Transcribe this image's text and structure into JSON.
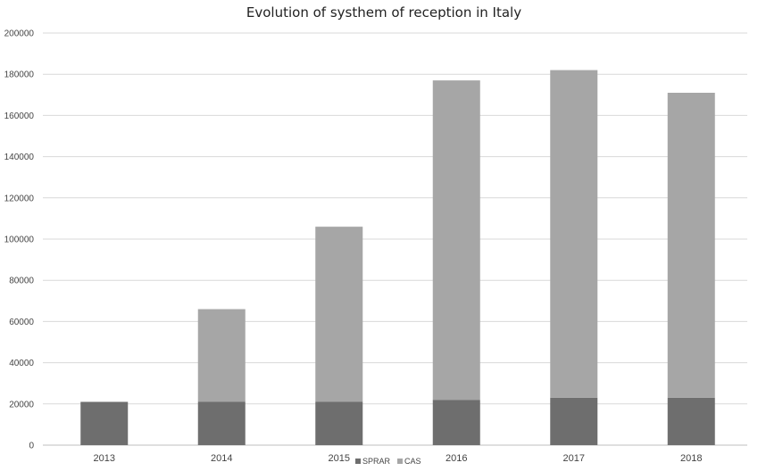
{
  "colors": {
    "sprar": "#6e6e6e",
    "cas": "#a6a6a6",
    "grid": "#d9d9d9",
    "text": "#444444"
  },
  "chart_data": {
    "type": "bar",
    "stacked": true,
    "title": "Evolution of systhem of reception in Italy",
    "xlabel": "",
    "ylabel": "",
    "categories": [
      "2013",
      "2014",
      "2015",
      "2016",
      "2017",
      "2018"
    ],
    "ylim": [
      0,
      200000
    ],
    "yticks": [
      0,
      20000,
      40000,
      60000,
      80000,
      100000,
      120000,
      140000,
      160000,
      180000,
      200000
    ],
    "grid": true,
    "legend_position": "bottom",
    "series": [
      {
        "name": "SPRAR",
        "color": "#6e6e6e",
        "values": [
          21000,
          21000,
          21000,
          22000,
          23000,
          23000
        ]
      },
      {
        "name": "CAS",
        "color": "#a6a6a6",
        "values": [
          0,
          45000,
          85000,
          155000,
          159000,
          148000
        ]
      }
    ]
  }
}
